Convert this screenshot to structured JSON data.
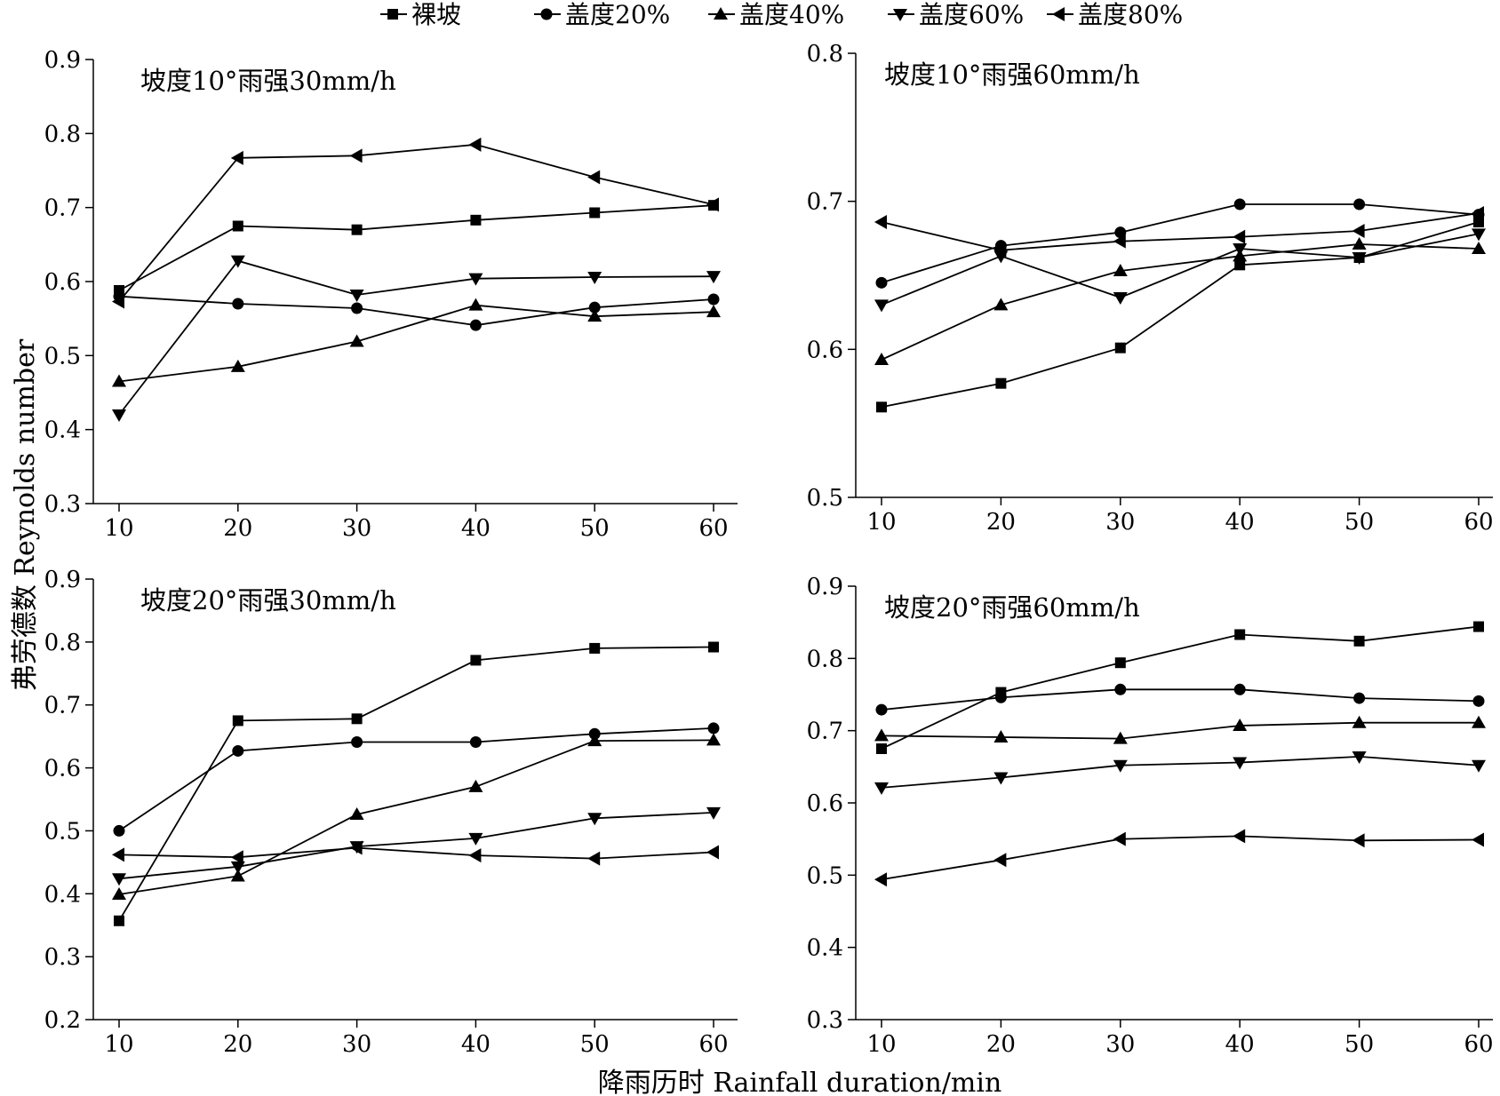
{
  "legend": [
    "裸坡",
    "盖度20%",
    "盖度40%",
    "盖度60%",
    "盖度80%"
  ],
  "ylabel": "弗劳德数 Reynolds number",
  "xlabel": "降雨历时 Rainfall duration/min",
  "chart_data": [
    {
      "type": "line",
      "title": "坡度10°雨强30mm/h",
      "x": [
        10,
        20,
        30,
        40,
        50,
        60
      ],
      "xticks": [
        "10",
        "20",
        "30",
        "40",
        "50",
        "60"
      ],
      "ylim": [
        0.3,
        0.9
      ],
      "yticks": [
        "0.3",
        "0.4",
        "0.5",
        "0.6",
        "0.7",
        "0.8",
        "0.9"
      ],
      "series": [
        {
          "name": "裸坡",
          "marker": "square",
          "values": [
            0.588,
            0.675,
            0.67,
            0.683,
            0.693,
            0.703
          ]
        },
        {
          "name": "盖度20%",
          "marker": "circle",
          "values": [
            0.58,
            0.57,
            0.564,
            0.541,
            0.565,
            0.576
          ]
        },
        {
          "name": "盖度40%",
          "marker": "triangle-up",
          "values": [
            0.465,
            0.485,
            0.519,
            0.568,
            0.553,
            0.559
          ]
        },
        {
          "name": "盖度60%",
          "marker": "triangle-down",
          "values": [
            0.42,
            0.628,
            0.582,
            0.604,
            0.606,
            0.607
          ]
        },
        {
          "name": "盖度80%",
          "marker": "triangle-left",
          "values": [
            0.573,
            0.767,
            0.77,
            0.785,
            0.741,
            0.704
          ]
        }
      ]
    },
    {
      "type": "line",
      "title": "坡度10°雨强60mm/h",
      "x": [
        10,
        20,
        30,
        40,
        50,
        60
      ],
      "xticks": [
        "10",
        "20",
        "30",
        "40",
        "50",
        "60"
      ],
      "ylim": [
        0.5,
        0.8
      ],
      "yticks": [
        "0.5",
        "0.6",
        "0.7",
        "0.8"
      ],
      "series": [
        {
          "name": "裸坡",
          "marker": "square",
          "values": [
            0.561,
            0.577,
            0.601,
            0.657,
            0.662,
            0.686
          ]
        },
        {
          "name": "盖度20%",
          "marker": "circle",
          "values": [
            0.645,
            0.67,
            0.679,
            0.698,
            0.698,
            0.691
          ]
        },
        {
          "name": "盖度40%",
          "marker": "triangle-up",
          "values": [
            0.593,
            0.63,
            0.653,
            0.663,
            0.671,
            0.668
          ]
        },
        {
          "name": "盖度60%",
          "marker": "triangle-down",
          "values": [
            0.63,
            0.663,
            0.635,
            0.668,
            0.662,
            0.678
          ]
        },
        {
          "name": "盖度80%",
          "marker": "triangle-left",
          "values": [
            0.686,
            0.667,
            0.673,
            0.676,
            0.68,
            0.692
          ]
        }
      ]
    },
    {
      "type": "line",
      "title": "坡度20°雨强30mm/h",
      "x": [
        10,
        20,
        30,
        40,
        50,
        60
      ],
      "xticks": [
        "10",
        "20",
        "30",
        "40",
        "50",
        "60"
      ],
      "ylim": [
        0.2,
        0.9
      ],
      "yticks": [
        "0.2",
        "0.3",
        "0.4",
        "0.5",
        "0.6",
        "0.7",
        "0.8",
        "0.9"
      ],
      "series": [
        {
          "name": "裸坡",
          "marker": "square",
          "values": [
            0.357,
            0.675,
            0.678,
            0.771,
            0.79,
            0.792
          ]
        },
        {
          "name": "盖度20%",
          "marker": "circle",
          "values": [
            0.5,
            0.627,
            0.641,
            0.641,
            0.654,
            0.663
          ]
        },
        {
          "name": "盖度40%",
          "marker": "triangle-up",
          "values": [
            0.399,
            0.428,
            0.526,
            0.57,
            0.643,
            0.644
          ]
        },
        {
          "name": "盖度60%",
          "marker": "triangle-down",
          "values": [
            0.424,
            0.443,
            0.475,
            0.488,
            0.52,
            0.529
          ]
        },
        {
          "name": "盖度80%",
          "marker": "triangle-left",
          "values": [
            0.462,
            0.458,
            0.473,
            0.461,
            0.456,
            0.466
          ]
        }
      ]
    },
    {
      "type": "line",
      "title": "坡度20°雨强60mm/h",
      "x": [
        10,
        20,
        30,
        40,
        50,
        60
      ],
      "xticks": [
        "10",
        "20",
        "30",
        "40",
        "50",
        "60"
      ],
      "ylim": [
        0.3,
        0.9
      ],
      "yticks": [
        "0.3",
        "0.4",
        "0.5",
        "0.6",
        "0.7",
        "0.8",
        "0.9"
      ],
      "series": [
        {
          "name": "裸坡",
          "marker": "square",
          "values": [
            0.675,
            0.753,
            0.794,
            0.833,
            0.824,
            0.844
          ]
        },
        {
          "name": "盖度20%",
          "marker": "circle",
          "values": [
            0.729,
            0.746,
            0.757,
            0.757,
            0.745,
            0.741
          ]
        },
        {
          "name": "盖度40%",
          "marker": "triangle-up",
          "values": [
            0.693,
            0.691,
            0.689,
            0.707,
            0.711,
            0.711
          ]
        },
        {
          "name": "盖度60%",
          "marker": "triangle-down",
          "values": [
            0.621,
            0.635,
            0.652,
            0.656,
            0.664,
            0.652
          ]
        },
        {
          "name": "盖度80%",
          "marker": "triangle-left",
          "values": [
            0.494,
            0.521,
            0.55,
            0.554,
            0.548,
            0.549
          ]
        }
      ]
    }
  ]
}
